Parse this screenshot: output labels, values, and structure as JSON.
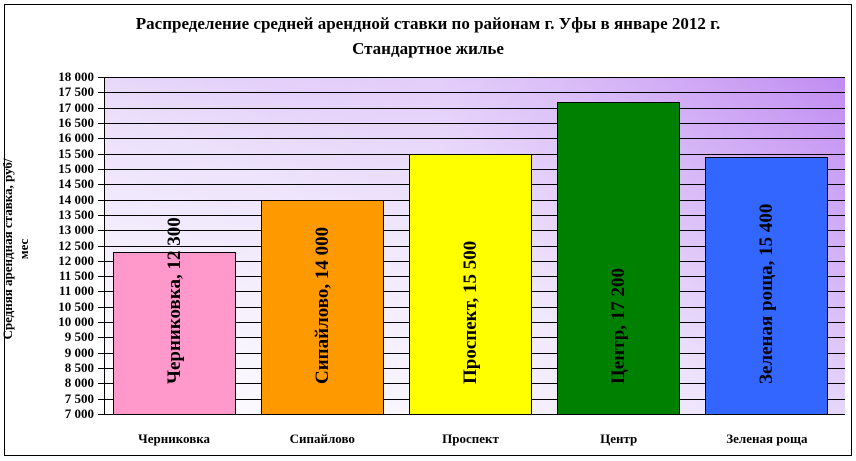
{
  "chart_data": {
    "type": "bar",
    "title": "Распределение средней арендной ставки по районам г. Уфы в январе 2012 г.",
    "subtitle": "Стандартное жилье",
    "xlabel": "",
    "ylabel": "Средняя арендная ставка, руб/мес",
    "ylim": [
      7000,
      18000
    ],
    "ytick_step": 500,
    "yticks": [
      "18 000",
      "17 500",
      "17 000",
      "16 500",
      "16 000",
      "15 500",
      "15 000",
      "14 500",
      "14 000",
      "13 500",
      "13 000",
      "12 500",
      "12 000",
      "11 500",
      "11 000",
      "10 500",
      "10 000",
      "9 500",
      "9 000",
      "8 500",
      "8 000",
      "7 500",
      "7 000"
    ],
    "categories": [
      "Черниковка",
      "Сипайлово",
      "Проспект",
      "Центр",
      "Зеленая роща"
    ],
    "values": [
      12300,
      14000,
      15500,
      17200,
      15400
    ],
    "data_labels": [
      "Черниковка, 12 300",
      "Сипайлово, 14 000",
      "Проспект, 15 500",
      "Центр, 17 200",
      "Зеленая роща, 15 400"
    ],
    "colors": [
      "#ff99cc",
      "#ff9900",
      "#ffff00",
      "#008000",
      "#3366ff"
    ],
    "grid": true,
    "legend": "none",
    "background": {
      "gradient_from": "#c08cf2",
      "gradient_to": "#ffffff"
    }
  }
}
